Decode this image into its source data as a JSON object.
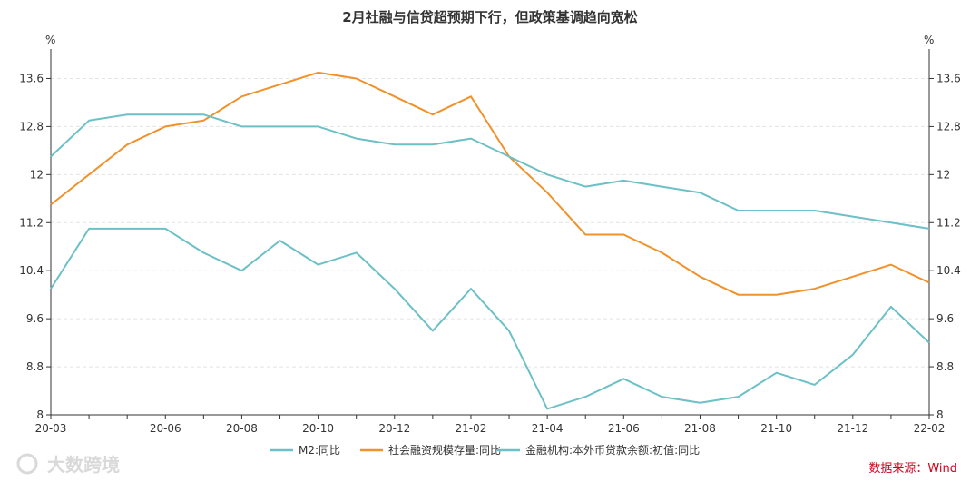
{
  "watermark": "大数跨境",
  "source": "数据来源：Wind",
  "chart_data": {
    "type": "line",
    "title": "2月社融与信贷超预期下行，但政策基调趋向宽松",
    "y_unit_left": "%",
    "y_unit_right": "%",
    "ylim": [
      8,
      14
    ],
    "yticks": [
      8,
      8.8,
      9.6,
      10.4,
      11.2,
      12,
      12.8,
      13.6
    ],
    "ytick_labels": [
      "8",
      "8.8",
      "9.6",
      "10.4",
      "11.2",
      "12",
      "12.8",
      "13.6"
    ],
    "x": [
      "20-03",
      "20-04",
      "20-05",
      "20-06",
      "20-07",
      "20-08",
      "20-09",
      "20-10",
      "20-11",
      "20-12",
      "21-01",
      "21-02",
      "21-03",
      "21-04",
      "21-05",
      "21-06",
      "21-07",
      "21-08",
      "21-09",
      "21-10",
      "21-11",
      "21-12",
      "22-01",
      "22-02"
    ],
    "xtick_labels": [
      "20-03",
      "20-06",
      "20-08",
      "20-10",
      "20-12",
      "21-02",
      "21-04",
      "21-06",
      "21-08",
      "21-10",
      "21-12",
      "22-02"
    ],
    "grid": "horizontal-dashed",
    "legend_position": "bottom-center",
    "series": [
      {
        "name": "M2:同比",
        "color": "#6cc0c6",
        "values": [
          10.1,
          11.1,
          11.1,
          11.1,
          10.7,
          10.4,
          10.9,
          10.5,
          10.7,
          10.1,
          9.4,
          10.1,
          9.4,
          8.1,
          8.3,
          8.6,
          8.3,
          8.2,
          8.3,
          8.7,
          8.5,
          9.0,
          9.8,
          9.2
        ]
      },
      {
        "name": "社会融资规模存量:同比",
        "color": "#f0922b",
        "values": [
          11.5,
          12.0,
          12.5,
          12.8,
          12.9,
          13.3,
          13.5,
          13.7,
          13.6,
          13.3,
          13.0,
          13.3,
          12.3,
          11.7,
          11.0,
          11.0,
          10.7,
          10.3,
          10.0,
          10.0,
          10.1,
          10.3,
          10.5,
          10.2
        ]
      },
      {
        "name": "金融机构:本外币贷款余额:初值:同比",
        "color": "#6cc0c6",
        "values": [
          12.3,
          12.9,
          13.0,
          13.0,
          13.0,
          12.8,
          12.8,
          12.8,
          12.6,
          12.5,
          12.5,
          12.6,
          12.3,
          12.0,
          11.8,
          11.9,
          11.8,
          11.7,
          11.4,
          11.4,
          11.4,
          11.3,
          11.2,
          11.1
        ]
      }
    ]
  }
}
